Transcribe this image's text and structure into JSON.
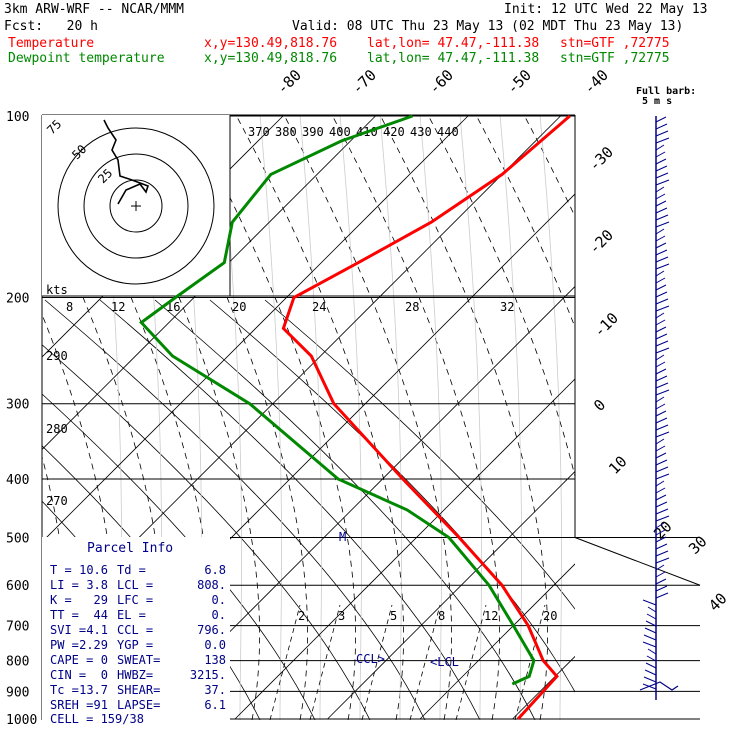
{
  "header": {
    "model": "3km ARW-WRF -- NCAR/MMM",
    "init": "Init: 12 UTC Wed 22 May 13",
    "fcst": "Fcst:   20 h",
    "valid": "Valid: 08 UTC Thu 23 May 13 (02 MDT Thu 23 May 13)",
    "temp_label": "Temperature",
    "dew_label": "Dewpoint temperature",
    "xy": "x,y=130.49,818.76",
    "latlon": "lat,lon= 47.47,-111.38",
    "stn": "stn=GTF ,72775"
  },
  "colors": {
    "temperature": "#ff0000",
    "dewpoint": "#008800",
    "wind": "#000088",
    "grid": "#000000",
    "theta_e": "#cccccc"
  },
  "chart_data": {
    "type": "line",
    "subtype": "skew-T log-P",
    "pressure_ticks": [
      "100",
      "200",
      "300",
      "400",
      "500",
      "600",
      "700",
      "800",
      "900",
      "1000"
    ],
    "isotherm_labels": [
      "-80",
      "-70",
      "-60",
      "-50",
      "-40",
      "-30",
      "-20",
      "-10",
      "0",
      "10",
      "20",
      "30",
      "40"
    ],
    "theta_e_labels": [
      "370",
      "380",
      "390",
      "400",
      "410",
      "420",
      "430",
      "440"
    ],
    "theta_labels": [
      "290",
      "280",
      "270"
    ],
    "mixing_ratio_labels": [
      "2",
      "3",
      "5",
      "8",
      "12",
      "20"
    ],
    "hodo_speed_labels": [
      "8",
      "12",
      "16",
      "20",
      "24",
      "28",
      "32"
    ],
    "hodo_ring_labels": [
      "75",
      "50",
      "25"
    ],
    "hodo_unit": "kts",
    "barb_label": "Full barb:",
    "barb_unit": "5 m s",
    "markers": {
      "M": "M",
      "ccl": "CCL>",
      "lcl": "<LCL"
    },
    "series": [
      {
        "name": "Temperature",
        "points": [
          [
            1000,
            10.6
          ],
          [
            850,
            10.2
          ],
          [
            800,
            7.0
          ],
          [
            700,
            1.6
          ],
          [
            600,
            -5.6
          ],
          [
            500,
            -15.4
          ],
          [
            400,
            -27.8
          ],
          [
            300,
            -43.4
          ],
          [
            250,
            -51.0
          ],
          [
            225,
            -57.0
          ],
          [
            200,
            -59.2
          ],
          [
            175,
            -56.0
          ],
          [
            150,
            -52.5
          ],
          [
            125,
            -50.0
          ],
          [
            100,
            -49.0
          ]
        ]
      },
      {
        "name": "Dewpoint temperature",
        "points": [
          [
            875,
            6.2
          ],
          [
            850,
            7.2
          ],
          [
            800,
            6.0
          ],
          [
            700,
            0.0
          ],
          [
            600,
            -7.0
          ],
          [
            500,
            -16.5
          ],
          [
            450,
            -24.0
          ],
          [
            400,
            -34.8
          ],
          [
            300,
            -52.5
          ],
          [
            250,
            -66.0
          ],
          [
            220,
            -73.0
          ],
          [
            200,
            -72.0
          ],
          [
            175,
            -70.5
          ],
          [
            150,
            -74.0
          ],
          [
            125,
            -75.0
          ],
          [
            110,
            -71.0
          ],
          [
            100,
            -66.0
          ]
        ]
      }
    ]
  },
  "parcel": {
    "title": "Parcel Info",
    "rows": [
      [
        "T  =",
        "10.6",
        "Td =",
        "6.8"
      ],
      [
        "LI =",
        "3.8",
        "LCL =",
        "808."
      ],
      [
        "K  =",
        "29",
        "LFC =",
        "0."
      ],
      [
        "TT =",
        "44",
        "EL  =",
        "0."
      ],
      [
        "SVI =",
        "4.1",
        "CCL =",
        "796."
      ],
      [
        "PW =",
        "2.29",
        "YGP =",
        "0.0"
      ],
      [
        "CAPE =",
        "0",
        "SWEAT=",
        "138"
      ],
      [
        "CIN =",
        "0",
        "HWBZ=",
        "3215."
      ],
      [
        "Tc =",
        "13.7",
        "SHEAR=",
        "37."
      ],
      [
        "SREH =",
        "91",
        "LAPSE=",
        "6.1"
      ]
    ],
    "cell": "CELL = 159/38"
  }
}
